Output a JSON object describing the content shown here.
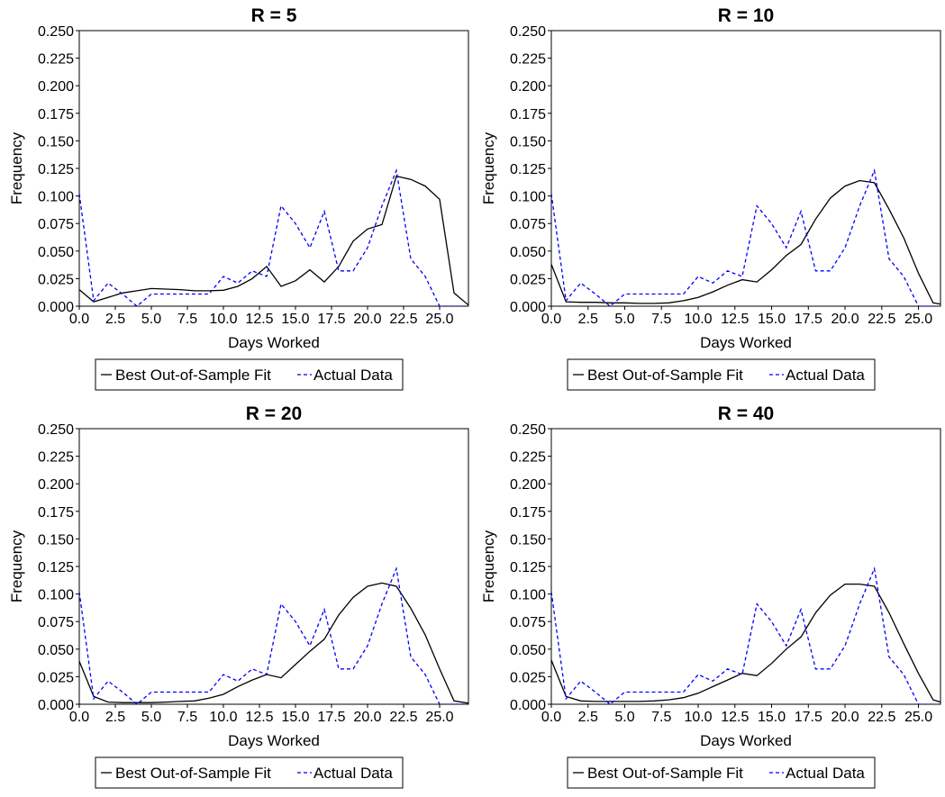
{
  "chart_data": [
    {
      "type": "line",
      "title": "R = 5",
      "xlabel": "Days Worked",
      "ylabel": "Frequency",
      "xlim": [
        0,
        27
      ],
      "ylim": [
        0,
        0.25
      ],
      "xticks": [
        "0.0",
        "2.5",
        "5.0",
        "7.5",
        "10.0",
        "12.5",
        "15.0",
        "17.5",
        "20.0",
        "22.5",
        "25.0"
      ],
      "yticks": [
        "0.000",
        "0.025",
        "0.050",
        "0.075",
        "0.100",
        "0.125",
        "0.150",
        "0.175",
        "0.200",
        "0.225",
        "0.250"
      ],
      "legend_position": "bottom",
      "series": [
        {
          "name": "Best Out-of-Sample Fit",
          "color": "#000000",
          "dash": "solid",
          "x": [
            0,
            1,
            2,
            3,
            4,
            5,
            6,
            7,
            8,
            9,
            10,
            11,
            12,
            13,
            14,
            15,
            16,
            17,
            18,
            19,
            20,
            21,
            22,
            23,
            24,
            25,
            26,
            27
          ],
          "y": [
            0.015,
            0.004,
            0.008,
            0.012,
            0.014,
            0.016,
            0.0155,
            0.015,
            0.014,
            0.014,
            0.0145,
            0.018,
            0.025,
            0.036,
            0.018,
            0.023,
            0.033,
            0.022,
            0.036,
            0.059,
            0.07,
            0.074,
            0.118,
            0.115,
            0.109,
            0.097,
            0.012,
            0.001
          ]
        },
        {
          "name": "Actual Data",
          "color": "#0000ff",
          "dash": "dashed",
          "x": [
            0,
            1,
            2,
            3,
            4,
            5,
            6,
            7,
            8,
            9,
            10,
            11,
            12,
            13,
            14,
            15,
            16,
            17,
            18,
            19,
            20,
            21,
            22,
            23,
            24,
            25,
            26,
            27
          ],
          "y": [
            0.102,
            0.005,
            0.021,
            0.011,
            0.0,
            0.011,
            0.011,
            0.011,
            0.011,
            0.011,
            0.027,
            0.021,
            0.032,
            0.027,
            0.091,
            0.075,
            0.053,
            0.086,
            0.032,
            0.032,
            0.053,
            0.091,
            0.123,
            0.043,
            0.027,
            0.0,
            0.0,
            0.0
          ]
        }
      ]
    },
    {
      "type": "line",
      "title": "R = 10",
      "xlabel": "Days Worked",
      "ylabel": "Frequency",
      "xlim": [
        0,
        26.5
      ],
      "ylim": [
        0,
        0.25
      ],
      "xticks": [
        "0.0",
        "2.5",
        "5.0",
        "7.5",
        "10.0",
        "12.5",
        "15.0",
        "17.5",
        "20.0",
        "22.5",
        "25.0"
      ],
      "yticks": [
        "0.000",
        "0.025",
        "0.050",
        "0.075",
        "0.100",
        "0.125",
        "0.150",
        "0.175",
        "0.200",
        "0.225",
        "0.250"
      ],
      "legend_position": "bottom",
      "series": [
        {
          "name": "Best Out-of-Sample Fit",
          "color": "#000000",
          "dash": "solid",
          "x": [
            0,
            1,
            2,
            3,
            4,
            5,
            6,
            7,
            8,
            9,
            10,
            11,
            12,
            13,
            14,
            15,
            16,
            17,
            18,
            19,
            20,
            21,
            22,
            23,
            24,
            25,
            26,
            26.5
          ],
          "y": [
            0.038,
            0.004,
            0.0035,
            0.0035,
            0.003,
            0.003,
            0.0025,
            0.0025,
            0.003,
            0.005,
            0.008,
            0.013,
            0.019,
            0.024,
            0.022,
            0.033,
            0.046,
            0.056,
            0.079,
            0.098,
            0.109,
            0.114,
            0.112,
            0.088,
            0.062,
            0.03,
            0.003,
            0.002
          ]
        },
        {
          "name": "Actual Data",
          "color": "#0000ff",
          "dash": "dashed",
          "x": [
            0,
            1,
            2,
            3,
            4,
            5,
            6,
            7,
            8,
            9,
            10,
            11,
            12,
            13,
            14,
            15,
            16,
            17,
            18,
            19,
            20,
            21,
            22,
            23,
            24,
            25,
            26
          ],
          "y": [
            0.102,
            0.005,
            0.021,
            0.011,
            0.0,
            0.011,
            0.011,
            0.011,
            0.011,
            0.011,
            0.027,
            0.021,
            0.032,
            0.027,
            0.091,
            0.075,
            0.053,
            0.086,
            0.032,
            0.032,
            0.053,
            0.091,
            0.123,
            0.043,
            0.027,
            0.0,
            0.0
          ]
        }
      ]
    },
    {
      "type": "line",
      "title": "R = 20",
      "xlabel": "Days Worked",
      "ylabel": "Frequency",
      "xlim": [
        0,
        27
      ],
      "ylim": [
        0,
        0.25
      ],
      "xticks": [
        "0.0",
        "2.5",
        "5.0",
        "7.5",
        "10.0",
        "12.5",
        "15.0",
        "17.5",
        "20.0",
        "22.5",
        "25.0"
      ],
      "yticks": [
        "0.000",
        "0.025",
        "0.050",
        "0.075",
        "0.100",
        "0.125",
        "0.150",
        "0.175",
        "0.200",
        "0.225",
        "0.250"
      ],
      "legend_position": "bottom",
      "series": [
        {
          "name": "Best Out-of-Sample Fit",
          "color": "#000000",
          "dash": "solid",
          "x": [
            0,
            1,
            2,
            3,
            4,
            5,
            6,
            7,
            8,
            9,
            10,
            11,
            12,
            13,
            14,
            15,
            16,
            17,
            18,
            19,
            20,
            21,
            22,
            23,
            24,
            25,
            26,
            27
          ],
          "y": [
            0.039,
            0.007,
            0.002,
            0.0015,
            0.0015,
            0.0015,
            0.002,
            0.0025,
            0.003,
            0.0055,
            0.009,
            0.016,
            0.022,
            0.027,
            0.024,
            0.036,
            0.048,
            0.059,
            0.081,
            0.097,
            0.107,
            0.11,
            0.107,
            0.087,
            0.063,
            0.032,
            0.003,
            0.001
          ]
        },
        {
          "name": "Actual Data",
          "color": "#0000ff",
          "dash": "dashed",
          "x": [
            0,
            1,
            2,
            3,
            4,
            5,
            6,
            7,
            8,
            9,
            10,
            11,
            12,
            13,
            14,
            15,
            16,
            17,
            18,
            19,
            20,
            21,
            22,
            23,
            24,
            25,
            26,
            27
          ],
          "y": [
            0.102,
            0.005,
            0.021,
            0.011,
            0.0,
            0.011,
            0.011,
            0.011,
            0.011,
            0.011,
            0.027,
            0.021,
            0.032,
            0.027,
            0.091,
            0.075,
            0.053,
            0.086,
            0.032,
            0.032,
            0.053,
            0.091,
            0.123,
            0.043,
            0.027,
            0.0,
            0.0,
            0.0
          ]
        }
      ]
    },
    {
      "type": "line",
      "title": "R = 40",
      "xlabel": "Days Worked",
      "ylabel": "Frequency",
      "xlim": [
        0,
        26.5
      ],
      "ylim": [
        0,
        0.25
      ],
      "xticks": [
        "0.0",
        "2.5",
        "5.0",
        "7.5",
        "10.0",
        "12.5",
        "15.0",
        "17.5",
        "20.0",
        "22.5",
        "25.0"
      ],
      "yticks": [
        "0.000",
        "0.025",
        "0.050",
        "0.075",
        "0.100",
        "0.125",
        "0.150",
        "0.175",
        "0.200",
        "0.225",
        "0.250"
      ],
      "legend_position": "bottom",
      "series": [
        {
          "name": "Best Out-of-Sample Fit",
          "color": "#000000",
          "dash": "solid",
          "x": [
            0,
            1,
            2,
            3,
            4,
            5,
            6,
            7,
            8,
            9,
            10,
            11,
            12,
            13,
            14,
            15,
            16,
            17,
            18,
            19,
            20,
            21,
            22,
            23,
            24,
            25,
            26,
            26.5
          ],
          "y": [
            0.04,
            0.007,
            0.003,
            0.0025,
            0.0025,
            0.0025,
            0.0025,
            0.003,
            0.004,
            0.006,
            0.01,
            0.016,
            0.022,
            0.028,
            0.026,
            0.037,
            0.05,
            0.061,
            0.083,
            0.099,
            0.109,
            0.109,
            0.107,
            0.083,
            0.055,
            0.028,
            0.004,
            0.002
          ]
        },
        {
          "name": "Actual Data",
          "color": "#0000ff",
          "dash": "dashed",
          "x": [
            0,
            1,
            2,
            3,
            4,
            5,
            6,
            7,
            8,
            9,
            10,
            11,
            12,
            13,
            14,
            15,
            16,
            17,
            18,
            19,
            20,
            21,
            22,
            23,
            24,
            25,
            26
          ],
          "y": [
            0.102,
            0.005,
            0.021,
            0.011,
            0.0,
            0.011,
            0.011,
            0.011,
            0.011,
            0.011,
            0.027,
            0.021,
            0.032,
            0.027,
            0.091,
            0.075,
            0.053,
            0.086,
            0.032,
            0.032,
            0.053,
            0.091,
            0.123,
            0.043,
            0.027,
            0.0,
            0.0
          ]
        }
      ]
    }
  ]
}
